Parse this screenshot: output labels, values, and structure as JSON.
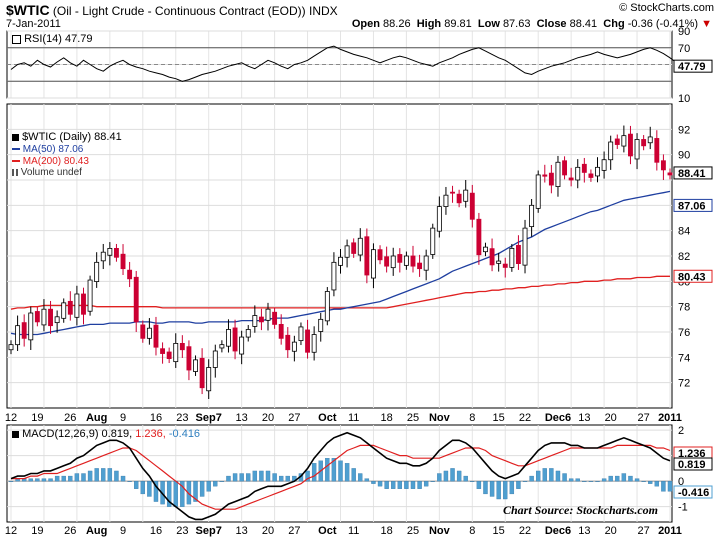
{
  "header": {
    "symbol": "$WTIC",
    "name": "(Oil - Light Crude - Continuous Contract (EOD))",
    "exchange": "INDX",
    "date": "7-Jan-2011",
    "open_label": "Open",
    "open_value": "88.26",
    "high_label": "High",
    "high_value": "89.81",
    "low_label": "Low",
    "low_value": "87.63",
    "close_label": "Close",
    "close_value": "88.41",
    "chg_label": "Chg",
    "chg_value": "-0.36 (-0.41%)",
    "watermark": "© StockCharts.com"
  },
  "legend": {
    "rsi": "RSI(14) 47.79",
    "price": "$WTIC (Daily) 88.41",
    "ma50": "MA(50) 87.06",
    "ma200": "MA(200) 80.43",
    "volume": "Volume undef",
    "macd_label": "MACD(12,26,9)",
    "macd_v1": "0.819,",
    "macd_v2": "1.236,",
    "macd_v3": "-0.416"
  },
  "caption": "Chart Source: Stockcharts.com",
  "colors": {
    "up": "#ffffff",
    "down": "#cc0033",
    "ma50": "#1f3fa0",
    "ma200": "#e02020",
    "macd": "#000000",
    "signal": "#e02020",
    "hist": "#4f9fd0"
  },
  "chart_data": [
    {
      "type": "line",
      "panel": "RSI(14)",
      "ylim": [
        10,
        90
      ],
      "y_ticks": [
        10,
        30,
        50,
        70,
        90
      ],
      "y_tick_labels": [
        "10",
        "",
        "",
        "70",
        "90"
      ],
      "last_value_label": "47.79",
      "reference_lines": [
        30,
        50,
        70
      ],
      "values": [
        44,
        50,
        52,
        48,
        55,
        50,
        47,
        53,
        58,
        52,
        48,
        55,
        50,
        45,
        42,
        48,
        52,
        55,
        50,
        47,
        45,
        42,
        40,
        38,
        35,
        33,
        30,
        32,
        35,
        38,
        40,
        42,
        45,
        48,
        50,
        52,
        48,
        45,
        50,
        55,
        52,
        48,
        45,
        50,
        52,
        55,
        60,
        65,
        70,
        72,
        68,
        65,
        62,
        60,
        58,
        55,
        52,
        55,
        58,
        60,
        58,
        55,
        52,
        50,
        48,
        52,
        55,
        58,
        62,
        65,
        68,
        70,
        66,
        62,
        58,
        55,
        50,
        45,
        40,
        38,
        42,
        45,
        48,
        50,
        52,
        55,
        58,
        60,
        62,
        65,
        62,
        60,
        58,
        60,
        62,
        65,
        68,
        70,
        67,
        63,
        58,
        52,
        48
      ]
    },
    {
      "type": "candlestick",
      "panel": "$WTIC (Daily)",
      "ylim": [
        70,
        94
      ],
      "y_ticks": [
        72,
        74,
        76,
        78,
        80,
        82,
        84,
        86,
        88,
        90,
        92
      ],
      "y_tick_labels": [
        "72",
        "74",
        "76",
        "78",
        "80",
        "82",
        "84",
        "86",
        "",
        "90",
        "92"
      ],
      "last_price_label": "88.41",
      "ma50_label": "87.06",
      "ma200_label": "80.43",
      "x_tick_labels": [
        "12",
        "19",
        "26",
        "Aug",
        "9",
        "16",
        "23",
        "Sep7",
        "13",
        "20",
        "27",
        "Oct",
        "11",
        "18",
        "25",
        "Nov",
        "8",
        "15",
        "22",
        "Dec6",
        "13",
        "20",
        "27",
        "2011"
      ],
      "close": [
        75.0,
        76.5,
        75.5,
        77.5,
        76.8,
        77.8,
        76.5,
        77.2,
        78.3,
        77.4,
        79.0,
        77.4,
        80.1,
        81.5,
        82.3,
        82.6,
        81.9,
        81.0,
        80.2,
        76.8,
        75.5,
        76.3,
        74.8,
        74.3,
        73.9,
        75.1,
        74.6,
        73.0,
        73.8,
        71.6,
        73.2,
        74.5,
        75.0,
        76.2,
        74.5,
        75.6,
        76.2,
        77.3,
        76.8,
        77.8,
        76.6,
        75.5,
        74.6,
        75.2,
        76.4,
        74.4,
        75.8,
        77.0,
        79.2,
        81.5,
        81.9,
        82.8,
        82.2,
        83.4,
        80.5,
        82.5,
        81.7,
        81.2,
        82.0,
        81.5,
        82.0,
        81.2,
        81.0,
        82.0,
        84.2,
        85.9,
        86.8,
        87.0,
        86.2,
        87.2,
        84.9,
        82.1,
        82.7,
        81.3,
        81.6,
        81.1,
        82.6,
        81.4,
        84.2,
        86.0,
        88.4,
        88.3,
        87.6,
        89.4,
        88.4,
        88.0,
        89.0,
        88.6,
        88.2,
        89.0,
        89.6,
        91.0,
        90.8,
        91.5,
        89.9,
        91.2,
        90.7,
        91.4,
        89.4,
        88.8,
        88.4
      ],
      "ma50": [
        75.9,
        75.8,
        75.8,
        75.8,
        75.8,
        75.9,
        76.0,
        76.1,
        76.2,
        76.3,
        76.4,
        76.5,
        76.6,
        76.6,
        76.6,
        76.7,
        76.7,
        76.7,
        76.7,
        76.8,
        76.8,
        76.8,
        76.7,
        76.7,
        76.8,
        76.8,
        76.8,
        76.8,
        76.7,
        76.7,
        76.8,
        76.8,
        76.8,
        76.8,
        76.8,
        76.9,
        76.9,
        76.9,
        76.9,
        77.0,
        77.1,
        77.1,
        77.1,
        77.2,
        77.3,
        77.4,
        77.5,
        77.6,
        77.7,
        77.8,
        77.8,
        77.9,
        78.0,
        78.1,
        78.2,
        78.3,
        78.4,
        78.6,
        78.8,
        79.0,
        79.2,
        79.4,
        79.6,
        79.8,
        80.0,
        80.2,
        80.5,
        80.8,
        81.0,
        81.2,
        81.4,
        81.6,
        81.8,
        82.0,
        82.2,
        82.5,
        82.8,
        83.1,
        83.3,
        83.5,
        83.8,
        84.1,
        84.3,
        84.5,
        84.7,
        84.9,
        85.1,
        85.3,
        85.5,
        85.6,
        85.8,
        86.0,
        86.2,
        86.4,
        86.5,
        86.6,
        86.7,
        86.8,
        86.9,
        87.0,
        87.1
      ],
      "ma200": [
        77.8,
        77.9,
        77.9,
        78.0,
        78.0,
        78.1,
        78.1,
        78.1,
        78.1,
        78.1,
        78.1,
        78.1,
        78.1,
        78.0,
        78.0,
        78.0,
        78.0,
        78.0,
        78.0,
        78.0,
        78.0,
        78.0,
        78.0,
        77.9,
        77.9,
        77.9,
        77.9,
        77.9,
        77.9,
        77.9,
        77.9,
        77.9,
        77.9,
        77.9,
        77.9,
        77.9,
        77.9,
        77.9,
        77.9,
        77.9,
        77.9,
        77.9,
        77.9,
        77.9,
        77.9,
        77.9,
        77.9,
        77.9,
        77.9,
        77.9,
        77.9,
        77.9,
        77.9,
        77.9,
        77.9,
        77.9,
        77.9,
        77.9,
        78.0,
        78.1,
        78.2,
        78.3,
        78.4,
        78.5,
        78.6,
        78.7,
        78.8,
        78.9,
        79.0,
        79.1,
        79.1,
        79.2,
        79.2,
        79.3,
        79.3,
        79.4,
        79.4,
        79.5,
        79.5,
        79.6,
        79.6,
        79.7,
        79.7,
        79.8,
        79.8,
        79.9,
        79.9,
        80.0,
        80.0,
        80.0,
        80.1,
        80.1,
        80.2,
        80.2,
        80.2,
        80.3,
        80.3,
        80.3,
        80.4,
        80.4,
        80.4
      ]
    },
    {
      "type": "line",
      "panel": "MACD(12,26,9)",
      "ylim": [
        -1.6,
        2.2
      ],
      "y_ticks": [
        -1,
        0,
        1,
        2
      ],
      "y_tick_labels": [
        "-1",
        "0",
        "",
        "2"
      ],
      "value_labels": [
        "1.236",
        "0.819",
        "-0.416"
      ],
      "macd": [
        0.1,
        0.2,
        0.2,
        0.3,
        0.3,
        0.4,
        0.4,
        0.5,
        0.6,
        0.7,
        0.9,
        1.0,
        1.2,
        1.4,
        1.5,
        1.6,
        1.6,
        1.5,
        1.3,
        0.9,
        0.5,
        0.2,
        -0.2,
        -0.5,
        -0.8,
        -1.0,
        -1.2,
        -1.4,
        -1.5,
        -1.5,
        -1.4,
        -1.3,
        -1.1,
        -0.9,
        -0.8,
        -0.7,
        -0.6,
        -0.4,
        -0.3,
        -0.2,
        -0.2,
        -0.2,
        -0.1,
        0.0,
        0.2,
        0.5,
        0.9,
        1.2,
        1.5,
        1.7,
        1.8,
        1.9,
        1.8,
        1.7,
        1.5,
        1.3,
        1.1,
        0.9,
        0.8,
        0.7,
        0.7,
        0.6,
        0.6,
        0.7,
        0.9,
        1.2,
        1.4,
        1.6,
        1.6,
        1.5,
        1.3,
        1.0,
        0.7,
        0.4,
        0.2,
        0.1,
        0.2,
        0.3,
        0.6,
        0.9,
        1.2,
        1.4,
        1.5,
        1.5,
        1.5,
        1.4,
        1.4,
        1.3,
        1.3,
        1.3,
        1.4,
        1.5,
        1.6,
        1.7,
        1.6,
        1.5,
        1.4,
        1.3,
        1.1,
        0.9,
        0.8
      ],
      "signal": [
        0.1,
        0.1,
        0.1,
        0.2,
        0.2,
        0.3,
        0.3,
        0.3,
        0.4,
        0.5,
        0.6,
        0.7,
        0.8,
        0.9,
        1.0,
        1.1,
        1.2,
        1.3,
        1.3,
        1.2,
        1.0,
        0.8,
        0.6,
        0.4,
        0.2,
        0.0,
        -0.2,
        -0.5,
        -0.7,
        -0.9,
        -1.0,
        -1.1,
        -1.1,
        -1.1,
        -1.1,
        -1.0,
        -0.9,
        -0.8,
        -0.7,
        -0.6,
        -0.5,
        -0.4,
        -0.3,
        -0.2,
        -0.1,
        0.1,
        0.2,
        0.4,
        0.6,
        0.8,
        1.0,
        1.2,
        1.3,
        1.4,
        1.4,
        1.4,
        1.3,
        1.2,
        1.1,
        1.0,
        1.0,
        0.9,
        0.9,
        0.9,
        0.9,
        0.9,
        1.0,
        1.1,
        1.2,
        1.3,
        1.3,
        1.3,
        1.2,
        1.0,
        0.9,
        0.8,
        0.7,
        0.6,
        0.6,
        0.7,
        0.8,
        0.9,
        1.0,
        1.1,
        1.2,
        1.3,
        1.3,
        1.3,
        1.3,
        1.3,
        1.3,
        1.3,
        1.4,
        1.4,
        1.4,
        1.4,
        1.4,
        1.4,
        1.3,
        1.3,
        1.2
      ]
    }
  ]
}
